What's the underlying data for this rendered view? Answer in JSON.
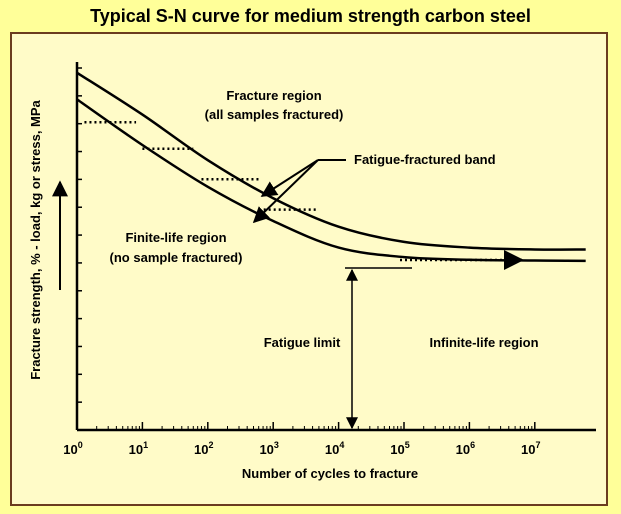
{
  "title": "Typical S-N curve for medium strength carbon steel",
  "chart_data": {
    "type": "line",
    "title": "Typical S-N curve for medium strength carbon steel",
    "xlabel": "Number of cycles to fracture",
    "ylabel": "Fracture strength, % - load, kg or stress, MPa",
    "x_scale": "log",
    "x_tick_labels": [
      {
        "base": "10",
        "exp": "0",
        "value": 1
      },
      {
        "base": "10",
        "exp": "1",
        "value": 10
      },
      {
        "base": "10",
        "exp": "2",
        "value": 100
      },
      {
        "base": "10",
        "exp": "3",
        "value": 1000
      },
      {
        "base": "10",
        "exp": "4",
        "value": 10000
      },
      {
        "base": "10",
        "exp": "5",
        "value": 100000
      },
      {
        "base": "10",
        "exp": "6",
        "value": 1000000
      },
      {
        "base": "10",
        "exp": "7",
        "value": 10000000
      }
    ],
    "y_tick_count": 13,
    "series": [
      {
        "role": "upper-boundary",
        "points": [
          [
            1,
            94
          ],
          [
            10,
            83
          ],
          [
            100,
            71
          ],
          [
            1000,
            61
          ],
          [
            10000,
            53.5
          ],
          [
            100000,
            49.5
          ],
          [
            1000000,
            48
          ],
          [
            10000000,
            47.5
          ],
          [
            60000000,
            47.5
          ]
        ]
      },
      {
        "role": "lower-boundary",
        "points": [
          [
            1,
            87
          ],
          [
            10,
            75
          ],
          [
            100,
            64
          ],
          [
            1000,
            55
          ],
          [
            10000,
            48
          ],
          [
            100000,
            45.5
          ],
          [
            1000000,
            44.8
          ],
          [
            10000000,
            44.6
          ],
          [
            60000000,
            44.5
          ]
        ]
      }
    ],
    "scatter_bands": [
      {
        "x_from": 1.3,
        "x_to": 8,
        "y": 81
      },
      {
        "x_from": 10,
        "x_to": 60,
        "y": 74
      },
      {
        "x_from": 80,
        "x_to": 650,
        "y": 66
      },
      {
        "x_from": 600,
        "x_to": 4500,
        "y": 58
      }
    ],
    "fatigue_limit": {
      "x": 20000,
      "y": 45.8
    },
    "annotations": {
      "fracture_region": [
        "Fracture region",
        "(all samples fractured)"
      ],
      "fatigue_band": "Fatigue-fractured band",
      "finite_life": [
        "Finite-life region",
        "(no sample fractured)"
      ],
      "fatigue_limit": "Fatigue limit",
      "infinite_life": "Infinite-life region"
    },
    "colors": {
      "background": "#ffff99",
      "plot_background": "#fffbc8",
      "frame": "#6b3c1f",
      "curve": "#000000"
    }
  }
}
